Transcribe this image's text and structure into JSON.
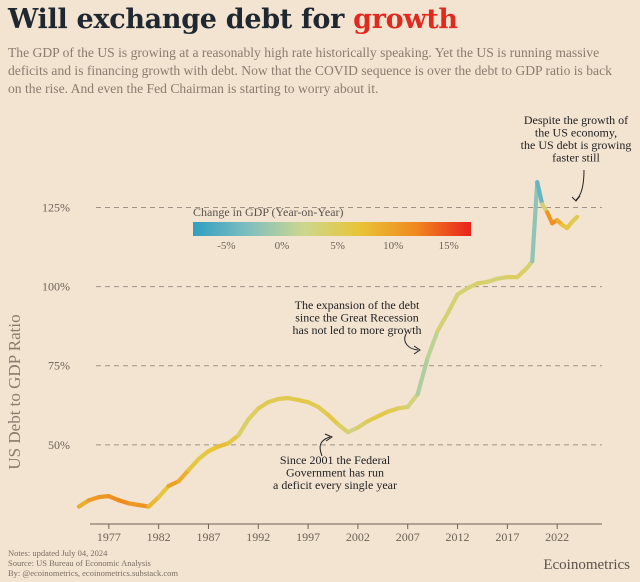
{
  "header": {
    "title_main": "Will exchange debt for ",
    "title_accent": "growth",
    "subtitle": "The GDP of the US is growing at a reasonably high rate historically speaking. Yet the US is running massive deficits and is financing growth with debt. Now that the COVID sequence is over the debt to GDP ratio is back on the rise. And even the Fed Chairman is starting to worry about it."
  },
  "footer": {
    "notes": "Notes: updated July 04, 2024",
    "source": "Source: US Bureau of Economic Analysis",
    "by": "By: @ecoinometrics, ecoinometrics.substack.com",
    "brand": "Ecoinometrics"
  },
  "colors": {
    "background": "#f3e4d2",
    "accent": "#e02a1f",
    "gradient": [
      "#2f9fc1",
      "#7fbfc0",
      "#cdd78d",
      "#e8c437",
      "#f08a1d",
      "#e8231b"
    ]
  },
  "chart_data": {
    "type": "line",
    "title": "US Debt to GDP Ratio",
    "ylabel": "US Debt to GDP Ratio",
    "xlabel": "",
    "xlim": [
      1972.5,
      2026.5
    ],
    "ylim": [
      25,
      140
    ],
    "x_ticks": [
      1977,
      1982,
      1987,
      1992,
      1997,
      2002,
      2007,
      2012,
      2017,
      2022
    ],
    "x_tick_labels": [
      "1977",
      "1982",
      "1987",
      "1992",
      "1997",
      "2002",
      "2007",
      "2012",
      "2017",
      "2022"
    ],
    "y_gridlines": [
      50,
      75,
      100,
      125
    ],
    "y_tick_labels": [
      "50%",
      "75%",
      "100%",
      "125%"
    ],
    "color_legend": {
      "title": "Change in GDP (Year-on-Year)",
      "range": [
        -8,
        17
      ],
      "ticks": [
        -5,
        0,
        5,
        10,
        15
      ],
      "tick_labels": [
        "-5%",
        "0%",
        "5%",
        "10%",
        "15%"
      ]
    },
    "series": [
      {
        "name": "US Debt to GDP Ratio (%)",
        "points": [
          {
            "x": 1974.0,
            "y": 30.5,
            "g": 8
          },
          {
            "x": 1975.0,
            "y": 32.5,
            "g": 10
          },
          {
            "x": 1976.0,
            "y": 33.5,
            "g": 11
          },
          {
            "x": 1977.0,
            "y": 33.8,
            "g": 11
          },
          {
            "x": 1978.0,
            "y": 32.5,
            "g": 12
          },
          {
            "x": 1979.0,
            "y": 31.5,
            "g": 12
          },
          {
            "x": 1980.0,
            "y": 31.0,
            "g": 10
          },
          {
            "x": 1981.0,
            "y": 30.5,
            "g": 12
          },
          {
            "x": 1982.0,
            "y": 33.5,
            "g": 4
          },
          {
            "x": 1983.0,
            "y": 37.0,
            "g": 9
          },
          {
            "x": 1984.0,
            "y": 38.5,
            "g": 11
          },
          {
            "x": 1985.0,
            "y": 42.0,
            "g": 7
          },
          {
            "x": 1986.0,
            "y": 45.5,
            "g": 6
          },
          {
            "x": 1987.0,
            "y": 48.0,
            "g": 6
          },
          {
            "x": 1988.0,
            "y": 49.5,
            "g": 8
          },
          {
            "x": 1989.0,
            "y": 50.5,
            "g": 7
          },
          {
            "x": 1990.0,
            "y": 53.0,
            "g": 5
          },
          {
            "x": 1991.0,
            "y": 58.0,
            "g": 3
          },
          {
            "x": 1992.0,
            "y": 61.5,
            "g": 6
          },
          {
            "x": 1993.0,
            "y": 63.5,
            "g": 5
          },
          {
            "x": 1994.0,
            "y": 64.5,
            "g": 6
          },
          {
            "x": 1995.0,
            "y": 64.8,
            "g": 5
          },
          {
            "x": 1996.0,
            "y": 64.2,
            "g": 6
          },
          {
            "x": 1997.0,
            "y": 63.5,
            "g": 6
          },
          {
            "x": 1998.0,
            "y": 62.0,
            "g": 5
          },
          {
            "x": 1999.0,
            "y": 59.5,
            "g": 6
          },
          {
            "x": 2000.0,
            "y": 56.5,
            "g": 6
          },
          {
            "x": 2001.0,
            "y": 54.0,
            "g": 3
          },
          {
            "x": 2002.0,
            "y": 55.5,
            "g": 3
          },
          {
            "x": 2003.0,
            "y": 57.5,
            "g": 5
          },
          {
            "x": 2004.0,
            "y": 59.0,
            "g": 6
          },
          {
            "x": 2005.0,
            "y": 60.5,
            "g": 6
          },
          {
            "x": 2006.0,
            "y": 61.5,
            "g": 5
          },
          {
            "x": 2007.0,
            "y": 62.0,
            "g": 4
          },
          {
            "x": 2008.0,
            "y": 66.0,
            "g": 2
          },
          {
            "x": 2009.0,
            "y": 77.5,
            "g": -2
          },
          {
            "x": 2010.0,
            "y": 86.0,
            "g": 4
          },
          {
            "x": 2011.0,
            "y": 91.5,
            "g": 3
          },
          {
            "x": 2012.0,
            "y": 97.5,
            "g": 4
          },
          {
            "x": 2013.0,
            "y": 99.5,
            "g": 3
          },
          {
            "x": 2014.0,
            "y": 101.0,
            "g": 4
          },
          {
            "x": 2015.0,
            "y": 101.5,
            "g": 4
          },
          {
            "x": 2016.0,
            "y": 102.5,
            "g": 3
          },
          {
            "x": 2017.0,
            "y": 103.0,
            "g": 4
          },
          {
            "x": 2018.0,
            "y": 103.0,
            "g": 5
          },
          {
            "x": 2019.0,
            "y": 106.0,
            "g": 4
          },
          {
            "x": 2019.5,
            "y": 108.0,
            "g": 3
          },
          {
            "x": 2020.0,
            "y": 133.0,
            "g": -7
          },
          {
            "x": 2020.5,
            "y": 126.0,
            "g": -2
          },
          {
            "x": 2021.0,
            "y": 123.5,
            "g": 9
          },
          {
            "x": 2021.5,
            "y": 120.0,
            "g": 13
          },
          {
            "x": 2022.0,
            "y": 121.0,
            "g": 10
          },
          {
            "x": 2022.5,
            "y": 119.5,
            "g": 8
          },
          {
            "x": 2023.0,
            "y": 118.5,
            "g": 6
          },
          {
            "x": 2023.5,
            "y": 120.5,
            "g": 6
          },
          {
            "x": 2024.0,
            "y": 122.0,
            "g": 5
          }
        ]
      }
    ],
    "annotations": [
      {
        "name": "annotation-federal-deficit",
        "lines": [
          "Since 2001 the Federal",
          "Government has run",
          "a deficit every single year"
        ]
      },
      {
        "name": "annotation-great-recession",
        "lines": [
          "The expansion of the debt",
          "since the Great Recession",
          "has not led to more growth"
        ]
      },
      {
        "name": "annotation-debt-growing",
        "lines": [
          "Despite the growth of",
          "the US economy,",
          "the US debt is growing",
          "faster still"
        ]
      }
    ]
  }
}
